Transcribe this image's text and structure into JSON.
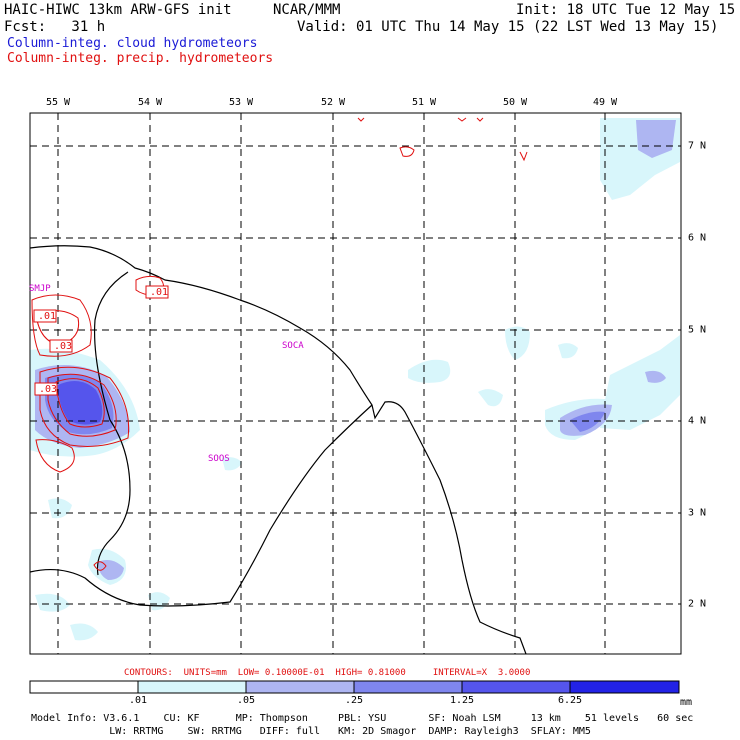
{
  "header": {
    "model": "HAIC-HIWC 13km ARW-GFS init",
    "org": "NCAR/MMM",
    "init": "Init: 18 UTC Tue 12 May 15",
    "fcst": "Fcst:   31 h",
    "valid": "Valid: 01 UTC Thu 14 May 15 (22 LST Wed 13 May 15)",
    "legend_blue": "Column-integ. cloud hydrometeors",
    "legend_red": "Column-integ. precip. hydrometeors"
  },
  "lon_labels": [
    "55 W",
    "54 W",
    "53 W",
    "52 W",
    "51 W",
    "50 W",
    "49 W"
  ],
  "lat_labels": [
    "7 N",
    "6 N",
    "5 N",
    "4 N",
    "3 N",
    "2 N"
  ],
  "stations": [
    "SMJP",
    "SOCA",
    "SOOS"
  ],
  "contour_labels": [
    ".01",
    ".01",
    ".03",
    ".03"
  ],
  "contours_line": "CONTOURS:  UNITS=mm  LOW= 0.10000E-01  HIGH= 0.81000     INTERVAL=X  3.0000",
  "colorbar": {
    "ticks": [
      ".01",
      ".05",
      ".25",
      "1.25",
      "6.25"
    ],
    "unit": "mm",
    "colors": [
      "#ffffff",
      "#d8f6fb",
      "#aeb6f2",
      "#7f86ee",
      "#5555ec",
      "#2222e6"
    ]
  },
  "footer": {
    "line1": "Model Info: V3.6.1    CU: KF      MP: Thompson     PBL: YSU       SF: Noah LSM     13 km    51 levels   60 sec",
    "line2": "             LW: RRTMG    SW: RRTMG   DIFF: full   KM: 2D Smagor  DAMP: Rayleigh3  SFLAY: MM5"
  }
}
